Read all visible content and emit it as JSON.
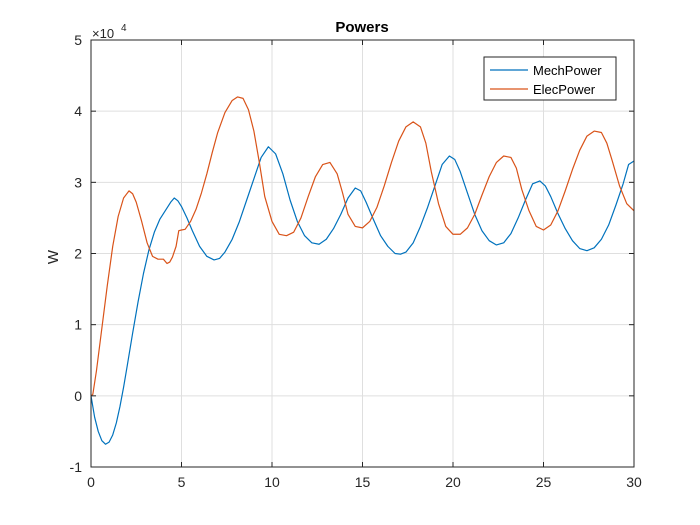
{
  "chart_data": {
    "type": "line",
    "title": "Powers",
    "xlabel": "",
    "ylabel": "W",
    "y_exponent_label": "×10",
    "y_exponent_power": "4",
    "xlim": [
      0,
      30
    ],
    "ylim": [
      -1,
      5
    ],
    "xticks": [
      0,
      5,
      10,
      15,
      20,
      25,
      30
    ],
    "yticks": [
      -1,
      0,
      1,
      2,
      3,
      4,
      5
    ],
    "grid": true,
    "legend_position": "top-right",
    "series": [
      {
        "name": "MechPower",
        "color": "#0072bd",
        "x": [
          0,
          0.2,
          0.4,
          0.6,
          0.8,
          1.0,
          1.2,
          1.4,
          1.6,
          1.8,
          2.0,
          2.3,
          2.6,
          2.9,
          3.2,
          3.5,
          3.8,
          4.1,
          4.4,
          4.6,
          4.8,
          5.0,
          5.3,
          5.6,
          6.0,
          6.4,
          6.8,
          7.1,
          7.4,
          7.8,
          8.2,
          8.6,
          9.0,
          9.4,
          9.8,
          10.2,
          10.6,
          11.0,
          11.4,
          11.8,
          12.2,
          12.6,
          13.0,
          13.4,
          13.8,
          14.2,
          14.6,
          14.9,
          15.2,
          15.6,
          16.0,
          16.4,
          16.8,
          17.1,
          17.4,
          17.8,
          18.2,
          18.6,
          19.0,
          19.4,
          19.8,
          20.1,
          20.4,
          20.8,
          21.2,
          21.6,
          22.0,
          22.4,
          22.8,
          23.2,
          23.6,
          24.0,
          24.4,
          24.8,
          25.1,
          25.4,
          25.8,
          26.2,
          26.6,
          27.0,
          27.4,
          27.8,
          28.2,
          28.6,
          29.0,
          29.4,
          29.7,
          30.0
        ],
        "y": [
          0,
          -0.3,
          -0.5,
          -0.63,
          -0.68,
          -0.65,
          -0.55,
          -0.38,
          -0.15,
          0.12,
          0.42,
          0.88,
          1.32,
          1.72,
          2.05,
          2.3,
          2.48,
          2.6,
          2.72,
          2.78,
          2.74,
          2.66,
          2.5,
          2.32,
          2.1,
          1.96,
          1.91,
          1.93,
          2.02,
          2.2,
          2.45,
          2.75,
          3.05,
          3.35,
          3.5,
          3.4,
          3.12,
          2.75,
          2.45,
          2.25,
          2.15,
          2.13,
          2.2,
          2.35,
          2.55,
          2.78,
          2.92,
          2.88,
          2.72,
          2.48,
          2.25,
          2.1,
          2.0,
          1.99,
          2.02,
          2.15,
          2.38,
          2.65,
          2.95,
          3.25,
          3.37,
          3.32,
          3.15,
          2.85,
          2.55,
          2.32,
          2.18,
          2.12,
          2.15,
          2.28,
          2.5,
          2.75,
          2.98,
          3.02,
          2.95,
          2.8,
          2.56,
          2.35,
          2.18,
          2.07,
          2.04,
          2.08,
          2.2,
          2.4,
          2.68,
          2.98,
          3.25,
          3.3
        ]
      },
      {
        "name": "ElecPower",
        "color": "#d95319",
        "x": [
          0,
          0.1,
          0.3,
          0.6,
          0.9,
          1.2,
          1.5,
          1.8,
          2.1,
          2.3,
          2.5,
          2.8,
          3.1,
          3.4,
          3.7,
          4.0,
          4.2,
          4.35,
          4.5,
          4.7,
          4.85,
          5.0,
          5.2,
          5.5,
          5.8,
          6.1,
          6.4,
          6.7,
          7.0,
          7.4,
          7.8,
          8.1,
          8.4,
          8.7,
          9.0,
          9.3,
          9.6,
          10.0,
          10.4,
          10.8,
          11.2,
          11.6,
          12.0,
          12.4,
          12.8,
          13.2,
          13.6,
          13.9,
          14.2,
          14.6,
          15.0,
          15.4,
          15.8,
          16.2,
          16.6,
          17.0,
          17.4,
          17.8,
          18.2,
          18.5,
          18.8,
          19.2,
          19.6,
          20.0,
          20.4,
          20.8,
          21.2,
          21.6,
          22.0,
          22.4,
          22.8,
          23.2,
          23.5,
          23.8,
          24.2,
          24.6,
          25.0,
          25.4,
          25.8,
          26.2,
          26.6,
          27.0,
          27.4,
          27.8,
          28.2,
          28.5,
          28.8,
          29.2,
          29.6,
          30.0
        ],
        "y": [
          0,
          0.02,
          0.35,
          0.95,
          1.55,
          2.1,
          2.52,
          2.78,
          2.88,
          2.84,
          2.72,
          2.45,
          2.15,
          1.96,
          1.92,
          1.92,
          1.86,
          1.88,
          1.95,
          2.1,
          2.32,
          2.33,
          2.34,
          2.45,
          2.62,
          2.85,
          3.12,
          3.42,
          3.7,
          3.98,
          4.15,
          4.2,
          4.18,
          4.02,
          3.72,
          3.28,
          2.8,
          2.45,
          2.27,
          2.25,
          2.3,
          2.5,
          2.8,
          3.08,
          3.25,
          3.28,
          3.12,
          2.85,
          2.55,
          2.38,
          2.36,
          2.45,
          2.65,
          2.95,
          3.28,
          3.58,
          3.78,
          3.85,
          3.78,
          3.55,
          3.15,
          2.7,
          2.38,
          2.27,
          2.27,
          2.36,
          2.55,
          2.82,
          3.08,
          3.28,
          3.37,
          3.35,
          3.2,
          2.9,
          2.6,
          2.38,
          2.33,
          2.4,
          2.6,
          2.88,
          3.18,
          3.45,
          3.65,
          3.72,
          3.7,
          3.55,
          3.3,
          2.95,
          2.7,
          2.6
        ]
      }
    ]
  }
}
